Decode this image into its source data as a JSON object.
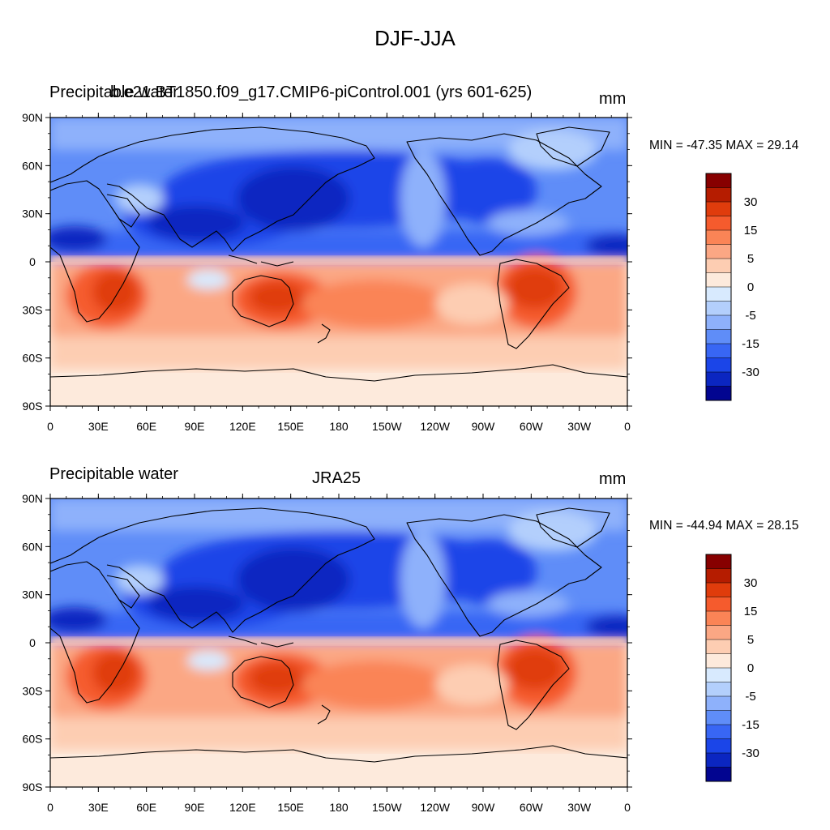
{
  "figure": {
    "title": "DJF-JJA"
  },
  "panels": [
    {
      "left_label": "Precipitable water",
      "center_label": "b.e21.BT1850.f09_g17.CMIP6-piControl.001 (yrs 601-625)",
      "units": "mm",
      "min_max": "MIN = -47.35 MAX =  29.14"
    },
    {
      "left_label": "Precipitable water",
      "center_label": "JRA25",
      "units": "mm",
      "min_max": "MIN = -44.94 MAX =  28.15"
    }
  ],
  "axes": {
    "lat_ticks": [
      "90N",
      "60N",
      "30N",
      "0",
      "30S",
      "60S",
      "90S"
    ],
    "lon_ticks": [
      "0",
      "30E",
      "60E",
      "90E",
      "120E",
      "150E",
      "180",
      "150W",
      "120W",
      "90W",
      "60W",
      "30W",
      "0"
    ]
  },
  "colorbar": {
    "labels": [
      "30",
      "15",
      "5",
      "0",
      "-5",
      "-15",
      "-30"
    ],
    "colors": [
      "#870000",
      "#b51c00",
      "#e03c0c",
      "#f55b2d",
      "#fa8456",
      "#fba784",
      "#fdcdb2",
      "#fdeadc",
      "#d8eafe",
      "#b3cffc",
      "#8eb1fb",
      "#5f8df8",
      "#3866f4",
      "#1b45e8",
      "#0b26c1",
      "#020590"
    ]
  },
  "map_palette": {
    "ocean_deep_blue": "#0b26c1",
    "mid_blue": "#3866f4",
    "light_blue": "#8eb1fb",
    "pale_blue": "#d8eafe",
    "pale_orange": "#fdeadc",
    "light_orange": "#fba784",
    "orange": "#f55b2d",
    "red": "#e03c0c",
    "dark_red": "#b51c00"
  }
}
